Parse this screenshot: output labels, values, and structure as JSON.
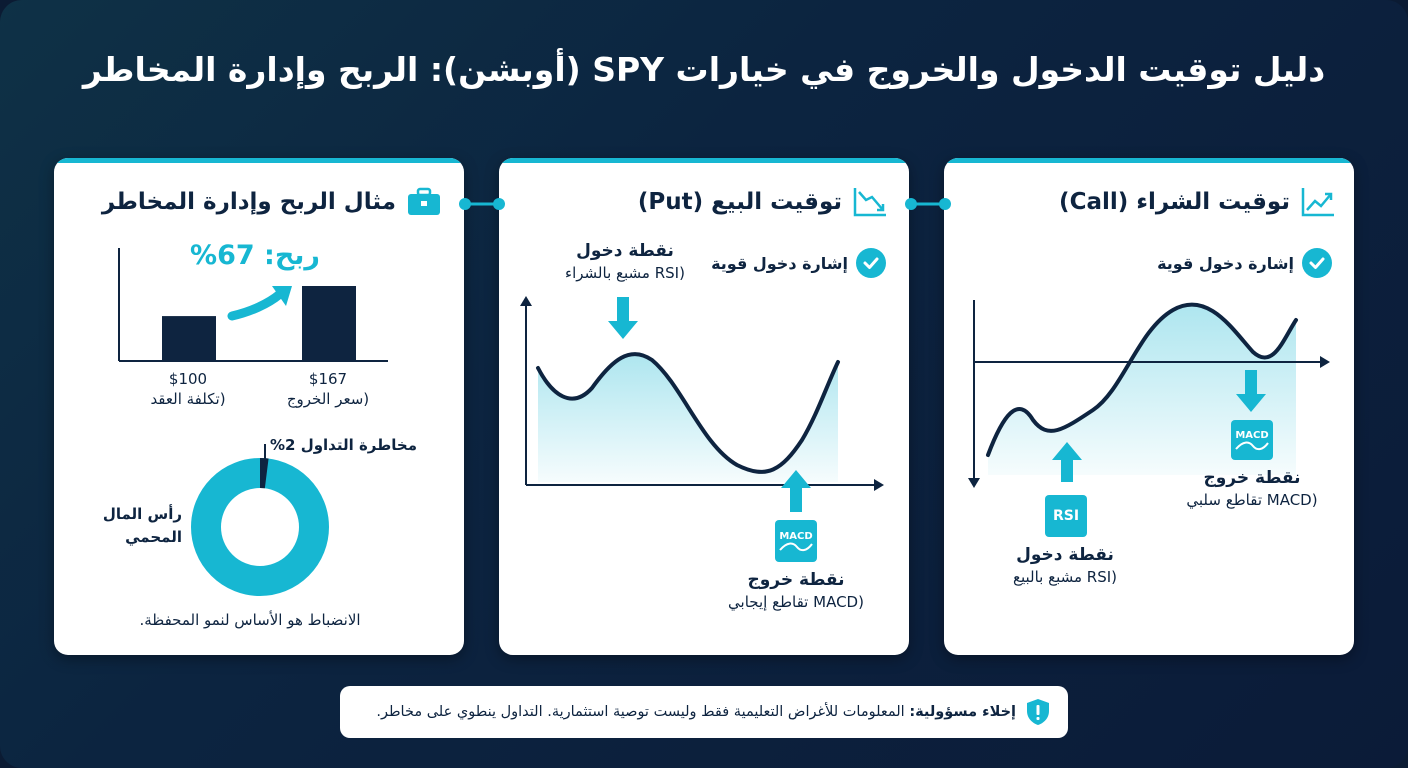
{
  "title": "دليل توقيت الدخول والخروج في خيارات SPY (أوبشن): الربح وإدارة المخاطر",
  "call_panel": {
    "title": "توقيت الشراء (Call)",
    "icon": "trend-up-icon",
    "signal_label": "إشارة دخول قوية",
    "entry_badge": "RSI",
    "entry_title": "نقطة دخول",
    "entry_sub": "(RSI مشبع بالبيع",
    "exit_badge": "MACD",
    "exit_title": "نقطة خروج",
    "exit_sub": "(MACD تقاطع سلبي"
  },
  "put_panel": {
    "title": "توقيت البيع (Put)",
    "icon": "trend-down-icon",
    "signal_label": "إشارة دخول قوية",
    "entry_title": "نقطة دخول",
    "entry_sub": "(RSI مشبع بالشراء",
    "exit_badge": "MACD",
    "exit_title": "نقطة خروج",
    "exit_sub": "(MACD تقاطع إيجابي"
  },
  "risk_panel": {
    "title": "مثال الربح وإدارة المخاطر",
    "icon": "briefcase-icon",
    "profit_label": "ربح: 67%",
    "bar_chart": {
      "type": "bar",
      "categories": [
        "$100",
        "$167"
      ],
      "category_notes": [
        "(تكلفة العقد",
        "(سعر الخروج"
      ],
      "values": [
        100,
        167
      ]
    },
    "donut": {
      "type": "pie",
      "risk_label": "مخاطرة التداول 2%",
      "protected_label": "رأس المال المحمي",
      "risk_percent": 2,
      "colors": {
        "protected": "#17b7d2",
        "risk": "#0e2440"
      }
    },
    "footer": "الانضباط هو الأساس لنمو المحفظة."
  },
  "disclaimer": {
    "label": "إخلاء مسؤولية:",
    "text": "المعلومات للأغراض التعليمية فقط وليست توصية استثمارية. التداول ينطوي على مخاطر.",
    "icon": "shield-alert-icon"
  },
  "colors": {
    "accent": "#17b7d2",
    "navy": "#0e2440",
    "background": "#0c2440"
  }
}
